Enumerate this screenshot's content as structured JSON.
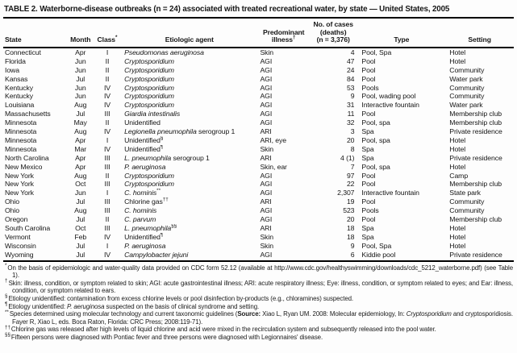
{
  "title": "TABLE 2. Waterborne-disease outbreaks (n = 24) associated with treated recreational water, by state — United States, 2005",
  "colors": {
    "background": "#fdfdfd",
    "text": "#161616",
    "rule": "#000000"
  },
  "table": {
    "headers": [
      {
        "key": "state",
        "lines": [
          "State"
        ],
        "sup": "",
        "align": "left"
      },
      {
        "key": "month",
        "lines": [
          "Month"
        ],
        "sup": "",
        "align": "center"
      },
      {
        "key": "cls",
        "lines": [
          "Class"
        ],
        "sup": "*",
        "align": "center"
      },
      {
        "key": "agent",
        "lines": [
          "Etiologic agent"
        ],
        "sup": "",
        "align": "center"
      },
      {
        "key": "illness",
        "lines": [
          "Predominant",
          "illness"
        ],
        "sup": "†",
        "align": "center"
      },
      {
        "key": "cases",
        "lines": [
          "No. of cases",
          "(deaths)",
          "(n = 3,376)"
        ],
        "sup": "",
        "align": "center"
      },
      {
        "key": "type",
        "lines": [
          "Type"
        ],
        "sup": "",
        "align": "center"
      },
      {
        "key": "setting",
        "lines": [
          "Setting"
        ],
        "sup": "",
        "align": "center"
      }
    ],
    "rows": [
      {
        "state": "Connecticut",
        "month": "Apr",
        "cls": "I",
        "agent": {
          "i": "Pseudomonas aeruginosa"
        },
        "illness": "Skin",
        "cases": "4",
        "type": "Pool, Spa",
        "setting": "Hotel"
      },
      {
        "state": "Florida",
        "month": "Jun",
        "cls": "II",
        "agent": {
          "i": "Cryptosporidium"
        },
        "illness": "AGI",
        "cases": "47",
        "type": "Pool",
        "setting": "Hotel"
      },
      {
        "state": "Iowa",
        "month": "Jun",
        "cls": "II",
        "agent": {
          "i": "Cryptosporidium"
        },
        "illness": "AGI",
        "cases": "24",
        "type": "Pool",
        "setting": "Community"
      },
      {
        "state": "Kansas",
        "month": "Jul",
        "cls": "II",
        "agent": {
          "i": "Cryptosporidium"
        },
        "illness": "AGI",
        "cases": "84",
        "type": "Pool",
        "setting": "Water park"
      },
      {
        "state": "Kentucky",
        "month": "Jun",
        "cls": "IV",
        "agent": {
          "i": "Cryptosporidium"
        },
        "illness": "AGI",
        "cases": "53",
        "type": "Pools",
        "setting": "Community"
      },
      {
        "state": "Kentucky",
        "month": "Jun",
        "cls": "IV",
        "agent": {
          "i": "Cryptosporidium"
        },
        "illness": "AGI",
        "cases": "9",
        "type": "Pool, wading pool",
        "setting": "Community"
      },
      {
        "state": "Louisiana",
        "month": "Aug",
        "cls": "IV",
        "agent": {
          "i": "Cryptosporidium"
        },
        "illness": "AGI",
        "cases": "31",
        "type": "Interactive fountain",
        "setting": "Water park"
      },
      {
        "state": "Massachusetts",
        "month": "Jul",
        "cls": "III",
        "agent": {
          "i": "Giardia intestinalis"
        },
        "illness": "AGI",
        "cases": "11",
        "type": "Pool",
        "setting": "Membership club"
      },
      {
        "state": "Minnesota",
        "month": "May",
        "cls": "II",
        "agent": {
          "r": "Unidentified"
        },
        "illness": "AGI",
        "cases": "32",
        "type": "Pool, spa",
        "setting": "Membership club"
      },
      {
        "state": "Minnesota",
        "month": "Aug",
        "cls": "IV",
        "agent": {
          "i": "Legionella pneumophila",
          "r": " serogroup 1"
        },
        "illness": "ARI",
        "cases": "3",
        "type": "Spa",
        "setting": "Private residence"
      },
      {
        "state": "Minnesota",
        "month": "Apr",
        "cls": "I",
        "agent": {
          "r": "Unidentified",
          "s": "§"
        },
        "illness": "ARI, eye",
        "cases": "20",
        "type": "Pool, spa",
        "setting": "Hotel"
      },
      {
        "state": "Minnesota",
        "month": "Mar",
        "cls": "IV",
        "agent": {
          "r": "Unidentified",
          "s": "¶"
        },
        "illness": "Skin",
        "cases": "8",
        "type": "Spa",
        "setting": "Hotel"
      },
      {
        "state": "North Carolina",
        "month": "Apr",
        "cls": "III",
        "agent": {
          "i": "L. pneumophila",
          "r": " serogroup 1"
        },
        "illness": "ARI",
        "cases": "4 (1)",
        "type": "Spa",
        "setting": "Private residence"
      },
      {
        "state": "New Mexico",
        "month": "Apr",
        "cls": "III",
        "agent": {
          "i": "P. aeruginosa"
        },
        "illness": "Skin, ear",
        "cases": "7",
        "type": "Pool, spa",
        "setting": "Hotel"
      },
      {
        "state": "New York",
        "month": "Aug",
        "cls": "II",
        "agent": {
          "i": "Cryptosporidium"
        },
        "illness": "AGI",
        "cases": "97",
        "type": "Pool",
        "setting": "Camp"
      },
      {
        "state": "New York",
        "month": "Oct",
        "cls": "III",
        "agent": {
          "i": "Cryptosporidium"
        },
        "illness": "AGI",
        "cases": "22",
        "type": "Pool",
        "setting": "Membership club"
      },
      {
        "state": "New York",
        "month": "Jun",
        "cls": "I",
        "agent": {
          "i": "C. hominis",
          "s": "**"
        },
        "illness": "AGI",
        "cases": "2,307",
        "type": "Interactive fountain",
        "setting": "State park"
      },
      {
        "state": "Ohio",
        "month": "Jul",
        "cls": "III",
        "agent": {
          "r": "Chlorine gas",
          "s": "††"
        },
        "illness": "ARI",
        "cases": "19",
        "type": "Pool",
        "setting": "Community"
      },
      {
        "state": "Ohio",
        "month": "Aug",
        "cls": "III",
        "agent": {
          "i": "C. hominis"
        },
        "illness": "AGI",
        "cases": "523",
        "type": "Pools",
        "setting": "Community"
      },
      {
        "state": "Oregon",
        "month": "Jul",
        "cls": "II",
        "agent": {
          "i": "C. parvum"
        },
        "illness": "AGI",
        "cases": "20",
        "type": "Pool",
        "setting": "Membership club"
      },
      {
        "state": "South Carolina",
        "month": "Oct",
        "cls": "III",
        "agent": {
          "i": "L. pneumophila",
          "s": "§§"
        },
        "illness": "ARI",
        "cases": "18",
        "type": "Spa",
        "setting": "Hotel"
      },
      {
        "state": "Vermont",
        "month": "Feb",
        "cls": "IV",
        "agent": {
          "r": "Unidentified",
          "s": "¶"
        },
        "illness": "Skin",
        "cases": "18",
        "type": "Spa",
        "setting": "Hotel"
      },
      {
        "state": "Wisconsin",
        "month": "Jul",
        "cls": "I",
        "agent": {
          "i": "P. aeruginosa"
        },
        "illness": "Skin",
        "cases": "9",
        "type": "Pool, Spa",
        "setting": "Hotel"
      },
      {
        "state": "Wyoming",
        "month": "Jul",
        "cls": "IV",
        "agent": {
          "i": "Campylobacter jejuni"
        },
        "illness": "AGI",
        "cases": "6",
        "type": "Kiddie pool",
        "setting": "Private residence"
      }
    ]
  },
  "footnotes": [
    {
      "marker": "*",
      "segments": [
        {
          "t": "On the basis of epidemiologic and water-quality data provided on CDC form 52.12 (available at http://www.cdc.gov/healthyswimming/downloads/cdc_5212_waterborne.pdf) (see Table 1)."
        }
      ]
    },
    {
      "marker": "†",
      "segments": [
        {
          "t": "Skin: illness, condition, or symptom related to skin; AGI: acute gastrointestinal illness; ARI: acute respiratory illness; Eye: illness, condition, or symptom related to eyes; and Ear: illness, condition, or symptom related to ears."
        }
      ]
    },
    {
      "marker": "§",
      "segments": [
        {
          "t": "Etiology unidentified: contamination from excess chlorine levels or pool disinfection by-products (e.g., chloramines) suspected."
        }
      ]
    },
    {
      "marker": "¶",
      "segments": [
        {
          "t": "Etiology unidentified: "
        },
        {
          "t": "P. aeruginosa",
          "i": true
        },
        {
          "t": " suspected on the basis of clinical syndrome and setting."
        }
      ]
    },
    {
      "marker": "**",
      "segments": [
        {
          "t": "Species determined using molecular technology and current taxonomic guidelines ("
        },
        {
          "t": "Source:",
          "b": true
        },
        {
          "t": " Xiao L, Ryan UM. 2008: Molecular epidemiology, In: "
        },
        {
          "t": "Cryptosporidium",
          "i": true
        },
        {
          "t": " and cryptosporidiosis. Fayer R, Xiao L, eds. Boca Raton, Florida: CRC Press; 2008:119-71)."
        }
      ]
    },
    {
      "marker": "††",
      "segments": [
        {
          "t": "Chlorine gas was released after high levels of liquid chlorine and acid were mixed in the recirculation system and subsequently released into the pool water."
        }
      ]
    },
    {
      "marker": "§§",
      "segments": [
        {
          "t": "Fifteen persons were diagnosed with Pontiac fever and three persons were diagnosed with Legionnaires' disease."
        }
      ]
    }
  ]
}
